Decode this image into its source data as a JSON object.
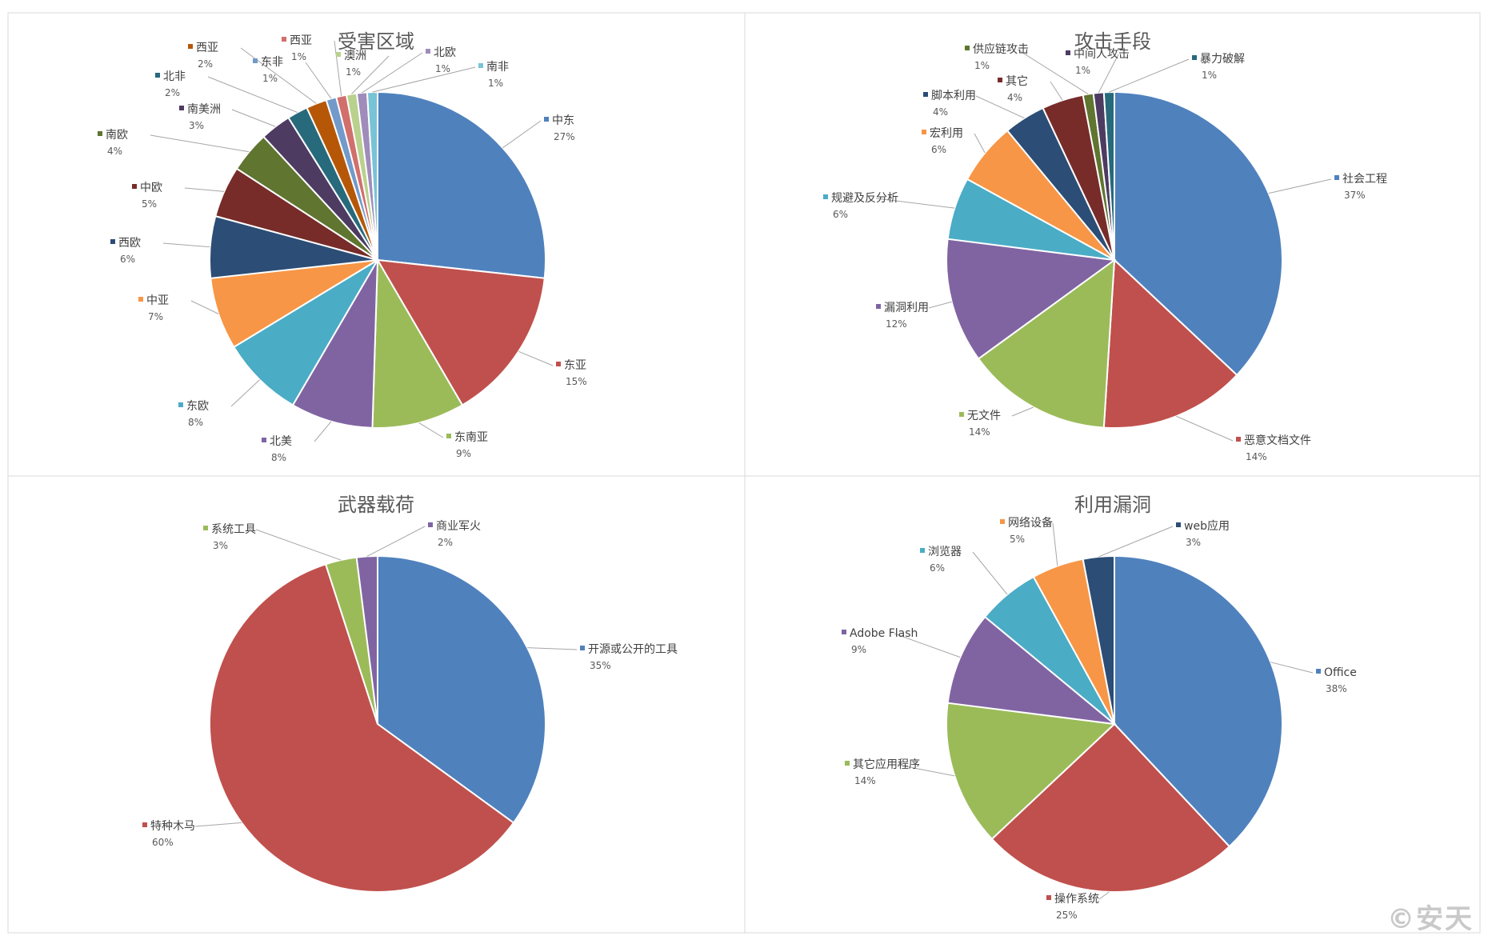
{
  "chart_data": [
    {
      "type": "pie",
      "title": "受害区域",
      "slices": [
        {
          "label": "中东",
          "value": 27,
          "pct": "27%",
          "color": "#4f81bd"
        },
        {
          "label": "东亚",
          "value": 15,
          "pct": "15%",
          "color": "#c0504d"
        },
        {
          "label": "东南亚",
          "value": 9,
          "pct": "9%",
          "color": "#9bbb59"
        },
        {
          "label": "北美",
          "value": 8,
          "pct": "8%",
          "color": "#8064a2"
        },
        {
          "label": "东欧",
          "value": 8,
          "pct": "8%",
          "color": "#4bacc6"
        },
        {
          "label": "中亚",
          "value": 7,
          "pct": "7%",
          "color": "#f79646"
        },
        {
          "label": "西欧",
          "value": 6,
          "pct": "6%",
          "color": "#2c4d75"
        },
        {
          "label": "中欧",
          "value": 5,
          "pct": "5%",
          "color": "#772c2a"
        },
        {
          "label": "南欧",
          "value": 4,
          "pct": "4%",
          "color": "#5f7530"
        },
        {
          "label": "南美洲",
          "value": 3,
          "pct": "3%",
          "color": "#4d3b62"
        },
        {
          "label": "北非",
          "value": 2,
          "pct": "2%",
          "color": "#276a7c"
        },
        {
          "label": "西亚",
          "value": 2,
          "pct": "2%",
          "color": "#b65708"
        },
        {
          "label": "东非",
          "value": 1,
          "pct": "1%",
          "color": "#729aca"
        },
        {
          "label": "西亚",
          "value": 1,
          "pct": "1%",
          "color": "#d16f6c"
        },
        {
          "label": "澳洲",
          "value": 1,
          "pct": "1%",
          "color": "#b9d18d"
        },
        {
          "label": "北欧",
          "value": 1,
          "pct": "1%",
          "color": "#a08cbb"
        },
        {
          "label": "南非",
          "value": 1,
          "pct": "1%",
          "color": "#79c3d6"
        }
      ]
    },
    {
      "type": "pie",
      "title": "攻击手段",
      "slices": [
        {
          "label": "社会工程",
          "value": 37,
          "pct": "37%",
          "color": "#4f81bd"
        },
        {
          "label": "恶意文档文件",
          "value": 14,
          "pct": "14%",
          "color": "#c0504d"
        },
        {
          "label": "无文件",
          "value": 14,
          "pct": "14%",
          "color": "#9bbb59"
        },
        {
          "label": "漏洞利用",
          "value": 12,
          "pct": "12%",
          "color": "#8064a2"
        },
        {
          "label": "规避及反分析",
          "value": 6,
          "pct": "6%",
          "color": "#4bacc6"
        },
        {
          "label": "宏利用",
          "value": 6,
          "pct": "6%",
          "color": "#f79646"
        },
        {
          "label": "脚本利用",
          "value": 4,
          "pct": "4%",
          "color": "#2c4d75"
        },
        {
          "label": "其它",
          "value": 4,
          "pct": "4%",
          "color": "#772c2a"
        },
        {
          "label": "供应链攻击",
          "value": 1,
          "pct": "1%",
          "color": "#5f7530"
        },
        {
          "label": "中间人攻击",
          "value": 1,
          "pct": "1%",
          "color": "#4d3b62"
        },
        {
          "label": "暴力破解",
          "value": 1,
          "pct": "1%",
          "color": "#276a7c"
        }
      ]
    },
    {
      "type": "pie",
      "title": "武器载荷",
      "slices": [
        {
          "label": "开源或公开的工具",
          "value": 35,
          "pct": "35%",
          "color": "#4f81bd"
        },
        {
          "label": "特种木马",
          "value": 60,
          "pct": "60%",
          "color": "#c0504d"
        },
        {
          "label": "系统工具",
          "value": 3,
          "pct": "3%",
          "color": "#9bbb59"
        },
        {
          "label": "商业军火",
          "value": 2,
          "pct": "2%",
          "color": "#8064a2"
        }
      ]
    },
    {
      "type": "pie",
      "title": "利用漏洞",
      "slices": [
        {
          "label": "Office",
          "value": 38,
          "pct": "38%",
          "color": "#4f81bd"
        },
        {
          "label": "操作系统",
          "value": 25,
          "pct": "25%",
          "color": "#c0504d"
        },
        {
          "label": "其它应用程序",
          "value": 14,
          "pct": "14%",
          "color": "#9bbb59"
        },
        {
          "label": "Adobe Flash",
          "value": 9,
          "pct": "9%",
          "color": "#8064a2"
        },
        {
          "label": "浏览器",
          "value": 6,
          "pct": "6%",
          "color": "#4bacc6"
        },
        {
          "label": "网络设备",
          "value": 5,
          "pct": "5%",
          "color": "#f79646"
        },
        {
          "label": "web应用",
          "value": 3,
          "pct": "3%",
          "color": "#2c4d75"
        }
      ]
    }
  ],
  "watermark": "©安天"
}
